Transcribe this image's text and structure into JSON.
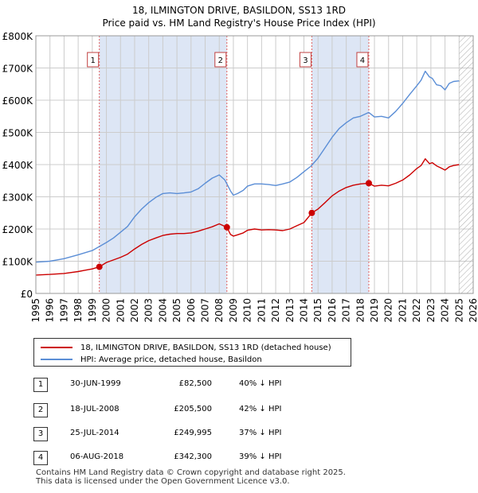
{
  "colors": {
    "property_line": "#cc0000",
    "hpi_line": "#5b8ed6",
    "shade": "#dde6f5",
    "marker_line": "#e06060",
    "grid": "#cccccc",
    "hatch": "#aaaaaa"
  },
  "chart_data": {
    "type": "line",
    "title": "18, ILMINGTON DRIVE, BASILDON, SS13 1RD",
    "subtitle": "Price paid vs. HM Land Registry's House Price Index (HPI)",
    "xlabel": "",
    "ylabel": "",
    "xlim": [
      1995,
      2026
    ],
    "ylim": [
      0,
      800000
    ],
    "x_ticks": [
      "1995",
      "1996",
      "1997",
      "1998",
      "1999",
      "2000",
      "2001",
      "2002",
      "2003",
      "2004",
      "2005",
      "2006",
      "2007",
      "2008",
      "2009",
      "2010",
      "2011",
      "2012",
      "2013",
      "2014",
      "2015",
      "2016",
      "2017",
      "2018",
      "2019",
      "2020",
      "2021",
      "2022",
      "2023",
      "2024",
      "2025",
      "2026"
    ],
    "y_ticks": [
      {
        "value": 0,
        "label": "£0"
      },
      {
        "value": 100000,
        "label": "£100K"
      },
      {
        "value": 200000,
        "label": "£200K"
      },
      {
        "value": 300000,
        "label": "£300K"
      },
      {
        "value": 400000,
        "label": "£400K"
      },
      {
        "value": 500000,
        "label": "£500K"
      },
      {
        "value": 600000,
        "label": "£600K"
      },
      {
        "value": 700000,
        "label": "£700K"
      },
      {
        "value": 800000,
        "label": "£800K"
      }
    ],
    "future_hatch_from": 2025.0,
    "shaded_ranges": [
      [
        1999.5,
        2008.54
      ],
      [
        2014.56,
        2018.6
      ]
    ],
    "series": [
      {
        "name": "18, ILMINGTON DRIVE, BASILDON, SS13 1RD (detached house)",
        "x": [
          1995,
          1996,
          1997,
          1998,
          1998.5,
          1999.0,
          1999.5,
          2000,
          2000.5,
          2001,
          2001.5,
          2002,
          2002.5,
          2003,
          2003.5,
          2004,
          2004.5,
          2005,
          2005.5,
          2006,
          2006.5,
          2007,
          2007.5,
          2008.0,
          2008.54,
          2008.8,
          2009,
          2009.3,
          2009.7,
          2010,
          2010.5,
          2011,
          2011.5,
          2012,
          2012.5,
          2013,
          2013.5,
          2014.0,
          2014.56,
          2015,
          2015.5,
          2016,
          2016.5,
          2017,
          2017.5,
          2018.0,
          2018.6,
          2019,
          2019.5,
          2020,
          2020.5,
          2021,
          2021.5,
          2022,
          2022.3,
          2022.6,
          2022.9,
          2023.1,
          2023.4,
          2023.7,
          2024,
          2024.3,
          2024.6,
          2025.0
        ],
        "y": [
          57000,
          59000,
          62000,
          68000,
          72000,
          76000,
          82500,
          96000,
          104000,
          112000,
          122000,
          138000,
          152000,
          164000,
          172000,
          180000,
          184000,
          186000,
          186000,
          188000,
          193000,
          200000,
          207000,
          216000,
          205500,
          183000,
          178000,
          182000,
          188000,
          196000,
          200000,
          197000,
          198000,
          197000,
          195000,
          200000,
          210000,
          220000,
          249995,
          262000,
          282000,
          303000,
          318000,
          329000,
          336000,
          340000,
          342300,
          333000,
          336000,
          334000,
          342000,
          352000,
          368000,
          388000,
          397000,
          418000,
          403000,
          406000,
          396000,
          390000,
          383000,
          393000,
          397000,
          400000
        ]
      },
      {
        "name": "HPI: Average price, detached house, Basildon",
        "x": [
          1995,
          1996,
          1997,
          1998,
          1999,
          2000,
          2000.5,
          2001,
          2001.5,
          2002,
          2002.5,
          2003,
          2003.5,
          2004,
          2004.5,
          2005,
          2005.5,
          2006,
          2006.5,
          2007,
          2007.5,
          2008.0,
          2008.4,
          2008.8,
          2009.0,
          2009.3,
          2009.7,
          2010,
          2010.5,
          2011,
          2011.5,
          2012,
          2012.5,
          2013,
          2013.5,
          2014.0,
          2014.5,
          2015,
          2015.5,
          2016,
          2016.5,
          2017,
          2017.5,
          2018.0,
          2018.6,
          2019,
          2019.5,
          2020,
          2020.5,
          2021,
          2021.5,
          2022,
          2022.3,
          2022.6,
          2022.9,
          2023.1,
          2023.4,
          2023.7,
          2024,
          2024.3,
          2024.6,
          2025.0
        ],
        "y": [
          97000,
          100000,
          108000,
          120000,
          133000,
          158000,
          172000,
          190000,
          208000,
          238000,
          262000,
          282000,
          298000,
          310000,
          312000,
          310000,
          312000,
          315000,
          325000,
          342000,
          358000,
          368000,
          352000,
          318000,
          305000,
          310000,
          320000,
          333000,
          340000,
          340000,
          338000,
          335000,
          340000,
          346000,
          360000,
          378000,
          395000,
          420000,
          452000,
          485000,
          512000,
          530000,
          545000,
          550000,
          562000,
          548000,
          550000,
          545000,
          565000,
          590000,
          618000,
          645000,
          662000,
          690000,
          672000,
          668000,
          648000,
          645000,
          632000,
          652000,
          658000,
          660000
        ]
      }
    ],
    "sale_markers": [
      {
        "label": "1",
        "x": 1999.5,
        "y": 82500
      },
      {
        "label": "2",
        "x": 2008.54,
        "y": 205500
      },
      {
        "label": "3",
        "x": 2014.56,
        "y": 249995
      },
      {
        "label": "4",
        "x": 2018.6,
        "y": 342300
      }
    ]
  },
  "legend": [
    {
      "label": "18, ILMINGTON DRIVE, BASILDON, SS13 1RD (detached house)",
      "color": "#cc0000"
    },
    {
      "label": "HPI: Average price, detached house, Basildon",
      "color": "#5b8ed6"
    }
  ],
  "sales": [
    {
      "num": "1",
      "date": "30-JUN-1999",
      "price": "£82,500",
      "hpi": "40% ↓ HPI"
    },
    {
      "num": "2",
      "date": "18-JUL-2008",
      "price": "£205,500",
      "hpi": "42% ↓ HPI"
    },
    {
      "num": "3",
      "date": "25-JUL-2014",
      "price": "£249,995",
      "hpi": "37% ↓ HPI"
    },
    {
      "num": "4",
      "date": "06-AUG-2018",
      "price": "£342,300",
      "hpi": "39% ↓ HPI"
    }
  ],
  "footer": {
    "line1": "Contains HM Land Registry data © Crown copyright and database right 2025.",
    "line2": "This data is licensed under the Open Government Licence v3.0."
  }
}
